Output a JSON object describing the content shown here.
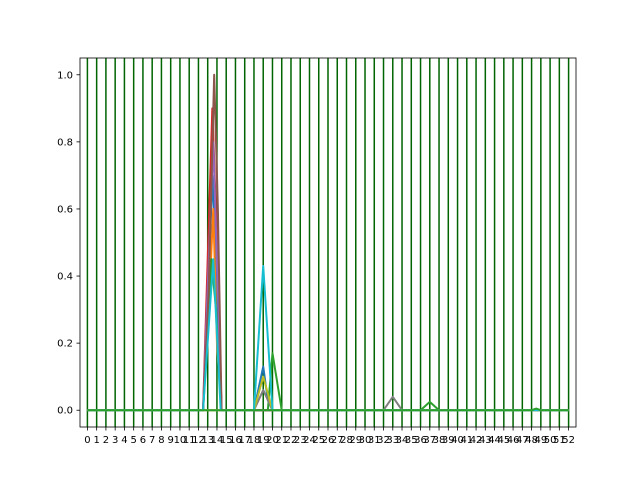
{
  "chart_data": {
    "type": "line",
    "title": "",
    "xlabel": "",
    "ylabel": "",
    "xlim": [
      -0.8,
      52.8
    ],
    "ylim": [
      -0.05,
      1.05
    ],
    "x_ticks": [
      0,
      1,
      2,
      3,
      4,
      5,
      6,
      7,
      8,
      9,
      10,
      11,
      12,
      13,
      14,
      15,
      16,
      17,
      18,
      19,
      20,
      21,
      22,
      23,
      24,
      25,
      26,
      27,
      28,
      29,
      30,
      31,
      32,
      33,
      34,
      35,
      36,
      37,
      38,
      39,
      40,
      41,
      42,
      43,
      44,
      45,
      46,
      47,
      48,
      49,
      50,
      51,
      52
    ],
    "x_tick_labels": [
      "0",
      "1",
      "2",
      "3",
      "4",
      "5",
      "6",
      "7",
      "8",
      "9",
      "10",
      "11",
      "12",
      "13",
      "14",
      "15",
      "16",
      "17",
      "18",
      "19",
      "20",
      "21",
      "22",
      "23",
      "24",
      "25",
      "26",
      "27",
      "28",
      "29",
      "30",
      "31",
      "32",
      "33",
      "34",
      "35",
      "36",
      "37",
      "38",
      "39",
      "40",
      "41",
      "42",
      "43",
      "44",
      "45",
      "46",
      "47",
      "48",
      "49",
      "50",
      "51",
      "52"
    ],
    "y_ticks": [
      0.0,
      0.2,
      0.4,
      0.6,
      0.8,
      1.0
    ],
    "y_tick_labels": [
      "0.0",
      "0.2",
      "0.4",
      "0.6",
      "0.8",
      "1.0"
    ],
    "grid": false,
    "vertical_lines": {
      "color": "#006400",
      "x": [
        0,
        1,
        2,
        3,
        4,
        5,
        6,
        7,
        8,
        9,
        10,
        11,
        12,
        13,
        14,
        15,
        16,
        17,
        18,
        19,
        20,
        21,
        22,
        23,
        24,
        25,
        26,
        27,
        28,
        29,
        30,
        31,
        32,
        33,
        34,
        35,
        36,
        37,
        38,
        39,
        40,
        41,
        42,
        43,
        44,
        45,
        46,
        47,
        48,
        49,
        50,
        51,
        52
      ]
    },
    "series": [
      {
        "color": "#1f77b4",
        "points": [
          [
            0,
            0
          ],
          [
            12.5,
            0
          ],
          [
            13,
            0.3
          ],
          [
            13.5,
            0.7
          ],
          [
            14,
            0.4
          ],
          [
            14.5,
            0
          ],
          [
            18,
            0
          ],
          [
            19,
            0.13
          ],
          [
            19.5,
            0.03
          ],
          [
            20,
            0
          ],
          [
            52,
            0
          ]
        ]
      },
      {
        "color": "#ff7f0e",
        "points": [
          [
            0,
            0
          ],
          [
            12.5,
            0
          ],
          [
            13.2,
            0.35
          ],
          [
            13.6,
            0.6
          ],
          [
            14,
            0.2
          ],
          [
            14.5,
            0
          ],
          [
            52,
            0
          ]
        ]
      },
      {
        "color": "#2ca02c",
        "points": [
          [
            0,
            0
          ],
          [
            12.5,
            0
          ],
          [
            13.4,
            0.45
          ],
          [
            13.9,
            0.3
          ],
          [
            14.5,
            0
          ],
          [
            19.5,
            0
          ],
          [
            20,
            0.17
          ],
          [
            21,
            0
          ],
          [
            36,
            0
          ],
          [
            37,
            0.025
          ],
          [
            38,
            0
          ],
          [
            52,
            0
          ]
        ]
      },
      {
        "color": "#d62728",
        "points": [
          [
            0,
            0
          ],
          [
            12.5,
            0
          ],
          [
            13.5,
            0.9
          ],
          [
            14,
            0.5
          ],
          [
            14.5,
            0
          ],
          [
            52,
            0
          ]
        ]
      },
      {
        "color": "#9467bd",
        "points": [
          [
            0,
            0
          ],
          [
            12.5,
            0
          ],
          [
            13.6,
            0.8
          ],
          [
            14.5,
            0
          ],
          [
            52,
            0
          ]
        ]
      },
      {
        "color": "#8c564b",
        "points": [
          [
            0,
            0
          ],
          [
            12.5,
            0
          ],
          [
            13.1,
            0.35
          ],
          [
            13.7,
            1.0
          ],
          [
            14.1,
            0.6
          ],
          [
            14.5,
            0
          ],
          [
            52,
            0
          ]
        ]
      },
      {
        "color": "#7f7f7f",
        "points": [
          [
            0,
            0
          ],
          [
            18,
            0
          ],
          [
            19,
            0.06
          ],
          [
            20,
            0
          ],
          [
            32,
            0
          ],
          [
            33,
            0.04
          ],
          [
            34,
            0
          ],
          [
            52,
            0
          ]
        ]
      },
      {
        "color": "#bcbd22",
        "points": [
          [
            0,
            0
          ],
          [
            18,
            0
          ],
          [
            19,
            0.1
          ],
          [
            20,
            0
          ],
          [
            52,
            0
          ]
        ]
      },
      {
        "color": "#17becf",
        "points": [
          [
            0,
            0
          ],
          [
            12.5,
            0
          ],
          [
            13.6,
            0.45
          ],
          [
            14.4,
            0
          ],
          [
            18,
            0
          ],
          [
            19,
            0.43
          ],
          [
            20,
            0
          ],
          [
            52,
            0
          ]
        ]
      },
      {
        "color": "#2ca02c",
        "points": [
          [
            0,
            0
          ],
          [
            48,
            0
          ],
          [
            48.5,
            0.005
          ],
          [
            49,
            0
          ],
          [
            52,
            0
          ]
        ]
      }
    ]
  }
}
